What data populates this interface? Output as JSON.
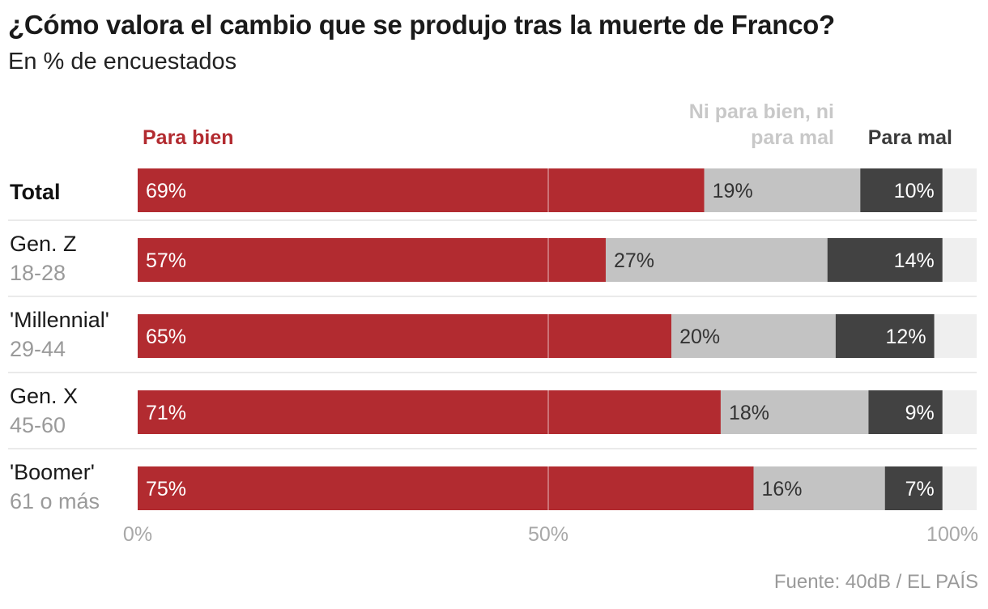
{
  "chart_data": {
    "type": "bar",
    "orientation": "horizontal",
    "stacked": true,
    "title": "¿Cómo valora el cambio que se produjo tras la muerte de Franco?",
    "subtitle": "En % de encuestados",
    "source": "Fuente: 40dB / EL PAÍS",
    "xlim": [
      0,
      100
    ],
    "ticks": [
      {
        "value": 0,
        "label": "0%"
      },
      {
        "value": 50,
        "label": "50%"
      },
      {
        "value": 100,
        "label": "100%"
      }
    ],
    "categories": [
      {
        "label": "Total",
        "sublabel": ""
      },
      {
        "label": "Gen. Z",
        "sublabel": "18-28"
      },
      {
        "label": "'Millennial'",
        "sublabel": "29-44"
      },
      {
        "label": "Gen. X",
        "sublabel": "45-60"
      },
      {
        "label": "'Boomer'",
        "sublabel": "61 o más"
      }
    ],
    "series": [
      {
        "name": "Para bien",
        "legend_lines": [
          "Para bien"
        ],
        "color": "#b22b30",
        "label_color": "#ffffff",
        "values": [
          69,
          57,
          65,
          71,
          75
        ]
      },
      {
        "name": "Ni para bien, ni para mal",
        "legend_lines": [
          "Ni para bien, ni",
          "para mal"
        ],
        "color": "#c3c3c3",
        "label_color": "#333333",
        "values": [
          19,
          27,
          20,
          18,
          16
        ]
      },
      {
        "name": "Para mal",
        "legend_lines": [
          "Para mal"
        ],
        "color": "#424242",
        "label_color": "#ffffff",
        "values": [
          10,
          14,
          12,
          9,
          7
        ]
      }
    ],
    "value_suffix": "%",
    "remainder_color": "#efefef",
    "legend_colors": [
      "#b22b30",
      "#c8c8c8",
      "#3a3a3a"
    ]
  }
}
